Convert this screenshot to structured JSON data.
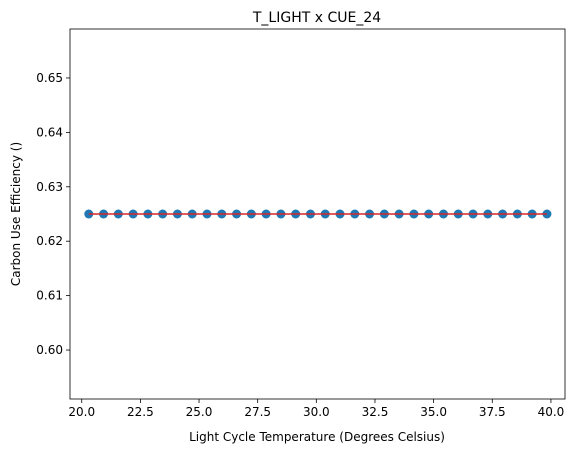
{
  "chart_data": {
    "type": "scatter",
    "title": "T_LIGHT x CUE_24",
    "xlabel": "Light Cycle Temperature (Degrees Celsius)",
    "ylabel": "Carbon Use Efficiency ()",
    "xlim": [
      19.5,
      40.6
    ],
    "ylim": [
      0.591,
      0.659
    ],
    "xticks": [
      20.0,
      22.5,
      25.0,
      27.5,
      30.0,
      32.5,
      35.0,
      37.5,
      40.0
    ],
    "xtick_labels": [
      "20.0",
      "22.5",
      "25.0",
      "27.5",
      "30.0",
      "32.5",
      "35.0",
      "37.5",
      "40.0"
    ],
    "yticks": [
      0.6,
      0.61,
      0.62,
      0.63,
      0.64,
      0.65
    ],
    "ytick_labels": [
      "0.60",
      "0.61",
      "0.62",
      "0.63",
      "0.64",
      "0.65"
    ],
    "grid": false,
    "series": [
      {
        "kind": "scatter",
        "color": "#1f77b4",
        "x": [
          20.3,
          20.93,
          21.56,
          22.19,
          22.82,
          23.45,
          24.08,
          24.71,
          25.34,
          25.97,
          26.6,
          27.23,
          27.86,
          28.49,
          29.12,
          29.75,
          30.38,
          31.01,
          31.64,
          32.27,
          32.9,
          33.53,
          34.16,
          34.79,
          35.42,
          36.05,
          36.68,
          37.31,
          37.94,
          38.57,
          39.2,
          39.83
        ],
        "y": [
          0.625,
          0.625,
          0.625,
          0.625,
          0.625,
          0.625,
          0.625,
          0.625,
          0.625,
          0.625,
          0.625,
          0.625,
          0.625,
          0.625,
          0.625,
          0.625,
          0.625,
          0.625,
          0.625,
          0.625,
          0.625,
          0.625,
          0.625,
          0.625,
          0.625,
          0.625,
          0.625,
          0.625,
          0.625,
          0.625,
          0.625,
          0.625
        ]
      },
      {
        "kind": "line",
        "color": "#d62728",
        "x": [
          20.3,
          39.83
        ],
        "y": [
          0.625,
          0.625
        ]
      }
    ]
  }
}
